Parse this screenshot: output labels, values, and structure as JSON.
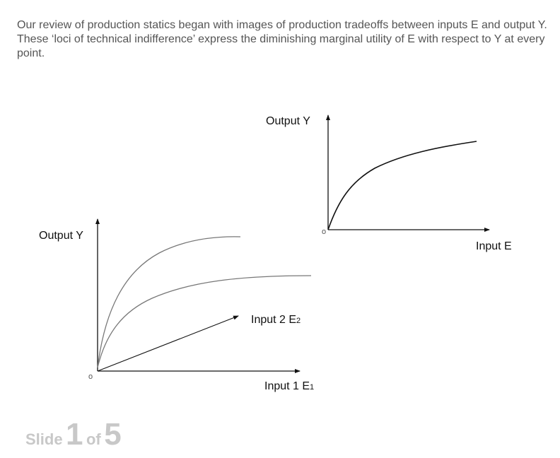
{
  "intro_text": "Our review of production statics began with images of production tradeoffs between inputs E and output Y. These ‘loci of technical indifference’ express the diminishing marginal utility of E with respect to Y at every point.",
  "top_graph": {
    "y_axis_label": "Output Y",
    "x_axis_label": "Input E",
    "origin_label": "o"
  },
  "bottom_graph": {
    "y_axis_label": "Output Y",
    "x_axis_label": "Input 1 E",
    "x_axis_subscript": "1",
    "z_axis_label": "Input 2 E",
    "z_axis_subscript": "2",
    "origin_label": "o"
  },
  "slide_counter": {
    "slide_word": "Slide",
    "current": "1",
    "of_word": "of",
    "total": "5"
  },
  "colors": {
    "text": "#555555",
    "axis": "#111111",
    "curve": "#777777",
    "counter": "#c8c8c8"
  }
}
